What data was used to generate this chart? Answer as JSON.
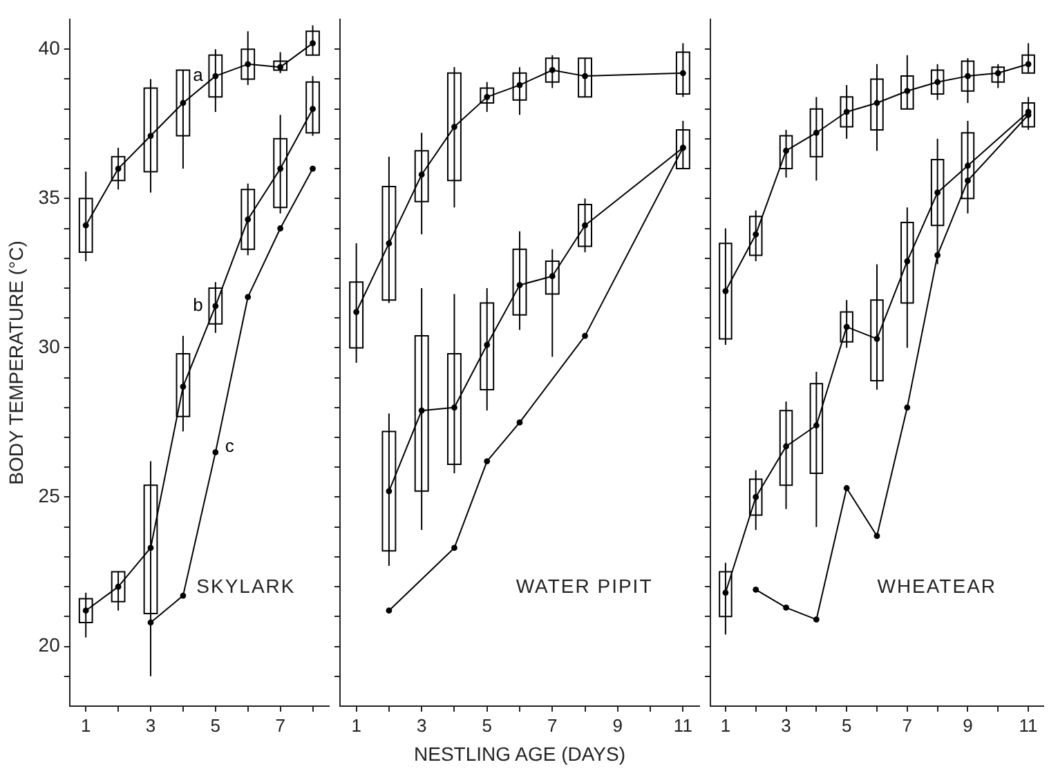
{
  "chart_data": [
    {
      "type": "box",
      "ylabel": "BODY TEMPERATURE (°C)",
      "annotations": [
        "SKYLARK"
      ],
      "categories": [
        "1",
        null,
        "3",
        null,
        "5",
        null,
        "7",
        null
      ],
      "ylim": [
        18,
        41
      ],
      "yticks": [
        {
          "value": 19,
          "label": null
        },
        20,
        {
          "value": 21,
          "label": null
        },
        {
          "value": 22,
          "label": null
        },
        {
          "value": 23,
          "label": null
        },
        {
          "value": 24,
          "label": null
        },
        25,
        {
          "value": 26,
          "label": null
        },
        {
          "value": 27,
          "label": null
        },
        {
          "value": 28,
          "label": null
        },
        {
          "value": 29,
          "label": null
        },
        30,
        {
          "value": 31,
          "label": null
        },
        {
          "value": 32,
          "label": null
        },
        {
          "value": 33,
          "label": null
        },
        {
          "value": 34,
          "label": null
        },
        35,
        {
          "value": 36,
          "label": null
        },
        {
          "value": 37,
          "label": null
        },
        {
          "value": 38,
          "label": null
        },
        {
          "value": 39,
          "label": null
        },
        40
      ],
      "grid": false,
      "marker": "circle",
      "line_style": "solid",
      "series": [
        {
          "name": "a",
          "color": "#000000",
          "boxes": [
            {
              "low": 32.9,
              "q1": 33.2,
              "median": 34.1,
              "q3": 35.0,
              "high": 35.9
            },
            {
              "low": 35.3,
              "q1": 35.6,
              "median": 36.0,
              "q3": 36.4,
              "high": 36.7
            },
            {
              "low": 35.2,
              "q1": 35.9,
              "median": 37.1,
              "q3": 38.7,
              "high": 39.0
            },
            {
              "low": 36.0,
              "q1": 37.1,
              "median": 38.2,
              "q3": 39.3,
              "high": 39.3
            },
            {
              "low": 37.9,
              "q1": 38.4,
              "median": 39.1,
              "q3": 39.8,
              "high": 40.0
            },
            {
              "low": 38.8,
              "q1": 39.0,
              "median": 39.5,
              "q3": 40.0,
              "high": 40.6
            },
            {
              "low": 39.2,
              "q1": 39.3,
              "median": 39.4,
              "q3": 39.6,
              "high": 39.9
            },
            {
              "low": 39.8,
              "q1": 39.8,
              "median": 40.2,
              "q3": 40.6,
              "high": 40.8
            }
          ]
        },
        {
          "type": "line",
          "marker": "none",
          "color": "#000000",
          "values": [
            34.1,
            36.0,
            37.1,
            38.2,
            39.1,
            39.5,
            39.4,
            40.2
          ]
        },
        {
          "name": "b",
          "color": "#000000",
          "boxes": [
            {
              "low": 20.3,
              "q1": 20.8,
              "median": 21.2,
              "q3": 21.6,
              "high": 21.8
            },
            {
              "low": 21.2,
              "q1": 21.5,
              "median": 22.0,
              "q3": 22.5,
              "high": 22.5
            },
            {
              "low": 19.0,
              "q1": 21.1,
              "median": 23.3,
              "q3": 25.4,
              "high": 26.2
            },
            {
              "low": 27.2,
              "q1": 27.7,
              "median": 28.7,
              "q3": 29.8,
              "high": 30.4
            },
            {
              "low": 30.5,
              "q1": 30.8,
              "median": 31.4,
              "q3": 32.0,
              "high": 32.2
            },
            {
              "low": 33.1,
              "q1": 33.3,
              "median": 34.3,
              "q3": 35.3,
              "high": 35.5
            },
            {
              "low": 34.5,
              "q1": 34.7,
              "median": 36.0,
              "q3": 37.0,
              "high": 37.8
            },
            {
              "low": 37.1,
              "q1": 37.2,
              "median": 38.0,
              "q3": 38.9,
              "high": 39.1
            }
          ]
        },
        {
          "type": "line",
          "marker": "none",
          "color": "#000000",
          "values": [
            21.2,
            22.0,
            23.3,
            28.7,
            31.4,
            34.3,
            36.0,
            38.0
          ]
        },
        {
          "name": "c",
          "type": "line",
          "color": "#000000",
          "values": [
            null,
            null,
            20.8,
            21.7,
            26.5,
            31.7,
            34.0,
            36.0
          ]
        }
      ]
    },
    {
      "type": "box",
      "xlabel": "NESTLING AGE (DAYS)",
      "annotations": [
        "WATER PIPIT"
      ],
      "categories": [
        "1",
        null,
        "3",
        null,
        "5",
        null,
        "7",
        null,
        "9",
        null,
        "11"
      ],
      "ylim": [
        18,
        41
      ],
      "yticks": [
        {
          "value": 19,
          "label": null
        },
        20,
        {
          "value": 21,
          "label": null
        },
        {
          "value": 22,
          "label": null
        },
        {
          "value": 23,
          "label": null
        },
        {
          "value": 24,
          "label": null
        },
        25,
        {
          "value": 26,
          "label": null
        },
        {
          "value": 27,
          "label": null
        },
        {
          "value": 28,
          "label": null
        },
        {
          "value": 29,
          "label": null
        },
        30,
        {
          "value": 31,
          "label": null
        },
        {
          "value": 32,
          "label": null
        },
        {
          "value": 33,
          "label": null
        },
        {
          "value": 34,
          "label": null
        },
        35,
        {
          "value": 36,
          "label": null
        },
        {
          "value": 37,
          "label": null
        },
        {
          "value": 38,
          "label": null
        },
        {
          "value": 39,
          "label": null
        },
        40
      ],
      "tick_labels": "x",
      "grid": false,
      "marker": "circle",
      "line_style": "solid",
      "series": [
        {
          "color": "#000000",
          "boxes": [
            {
              "low": 29.5,
              "q1": 30.0,
              "median": 31.2,
              "q3": 32.2,
              "high": 33.5
            },
            {
              "low": 31.5,
              "q1": 31.6,
              "median": 33.5,
              "q3": 35.4,
              "high": 36.4
            },
            {
              "low": 33.8,
              "q1": 34.9,
              "median": 35.8,
              "q3": 36.6,
              "high": 37.2
            },
            {
              "low": 34.7,
              "q1": 35.6,
              "median": 37.4,
              "q3": 39.2,
              "high": 39.4
            },
            {
              "low": 37.9,
              "q1": 38.2,
              "median": 38.4,
              "q3": 38.7,
              "high": 38.9
            },
            {
              "low": 37.8,
              "q1": 38.3,
              "median": 38.8,
              "q3": 39.2,
              "high": 39.4
            },
            {
              "low": 38.7,
              "q1": 38.9,
              "median": 39.3,
              "q3": 39.7,
              "high": 39.8
            },
            {
              "low": 38.4,
              "q1": 38.4,
              "median": 39.1,
              "q3": 39.7,
              "high": 39.7
            },
            null,
            null,
            {
              "low": 38.4,
              "q1": 38.5,
              "median": 39.2,
              "q3": 39.9,
              "high": 40.2
            }
          ]
        },
        {
          "type": "line",
          "marker": "none",
          "color": "#000000",
          "values": [
            31.2,
            33.5,
            35.8,
            37.4,
            38.4,
            38.8,
            39.3,
            39.1,
            null,
            null,
            39.2
          ]
        },
        {
          "color": "#000000",
          "boxes": [
            null,
            {
              "low": 22.7,
              "q1": 23.2,
              "median": 25.2,
              "q3": 27.2,
              "high": 27.8
            },
            {
              "low": 23.9,
              "q1": 25.2,
              "median": 27.9,
              "q3": 30.4,
              "high": 32.0
            },
            {
              "low": 25.8,
              "q1": 26.1,
              "median": 28.0,
              "q3": 29.8,
              "high": 31.8
            },
            {
              "low": 27.9,
              "q1": 28.6,
              "median": 30.1,
              "q3": 31.5,
              "high": 32.0
            },
            {
              "low": 30.6,
              "q1": 31.1,
              "median": 32.1,
              "q3": 33.3,
              "high": 33.9
            },
            {
              "low": 29.7,
              "q1": 31.8,
              "median": 32.4,
              "q3": 32.9,
              "high": 33.3
            },
            {
              "low": 33.2,
              "q1": 33.4,
              "median": 34.1,
              "q3": 34.8,
              "high": 35.0
            },
            null,
            null,
            {
              "low": 36.0,
              "q1": 36.0,
              "median": 36.7,
              "q3": 37.3,
              "high": 37.6
            }
          ]
        },
        {
          "type": "line",
          "marker": "none",
          "color": "#000000",
          "values": [
            null,
            25.2,
            27.9,
            28.0,
            30.1,
            32.1,
            32.4,
            34.1,
            null,
            null,
            36.7
          ]
        },
        {
          "type": "line",
          "color": "#000000",
          "values": [
            null,
            21.2,
            null,
            23.3,
            26.2,
            27.5,
            null,
            30.4,
            null,
            null,
            36.7
          ]
        }
      ]
    },
    {
      "type": "box",
      "annotations": [
        "WHEATEAR"
      ],
      "categories": [
        "1",
        null,
        "3",
        null,
        "5",
        null,
        "7",
        null,
        "9",
        null,
        "11"
      ],
      "ylim": [
        18,
        41
      ],
      "yticks": [
        {
          "value": 19,
          "label": null
        },
        20,
        {
          "value": 21,
          "label": null
        },
        {
          "value": 22,
          "label": null
        },
        {
          "value": 23,
          "label": null
        },
        {
          "value": 24,
          "label": null
        },
        25,
        {
          "value": 26,
          "label": null
        },
        {
          "value": 27,
          "label": null
        },
        {
          "value": 28,
          "label": null
        },
        {
          "value": 29,
          "label": null
        },
        30,
        {
          "value": 31,
          "label": null
        },
        {
          "value": 32,
          "label": null
        },
        {
          "value": 33,
          "label": null
        },
        {
          "value": 34,
          "label": null
        },
        35,
        {
          "value": 36,
          "label": null
        },
        {
          "value": 37,
          "label": null
        },
        {
          "value": 38,
          "label": null
        },
        {
          "value": 39,
          "label": null
        },
        40
      ],
      "tick_labels": "x",
      "grid": false,
      "marker": "circle",
      "line_style": "solid",
      "series": [
        {
          "color": "#000000",
          "boxes": [
            {
              "low": 30.1,
              "q1": 30.3,
              "median": 31.9,
              "q3": 33.5,
              "high": 34.0
            },
            {
              "low": 32.9,
              "q1": 33.1,
              "median": 33.8,
              "q3": 34.4,
              "high": 34.6
            },
            {
              "low": 35.7,
              "q1": 36.0,
              "median": 36.6,
              "q3": 37.1,
              "high": 37.3
            },
            {
              "low": 35.6,
              "q1": 36.4,
              "median": 37.2,
              "q3": 38.0,
              "high": 38.4
            },
            {
              "low": 37.0,
              "q1": 37.4,
              "median": 37.9,
              "q3": 38.4,
              "high": 38.8
            },
            {
              "low": 36.6,
              "q1": 37.3,
              "median": 38.2,
              "q3": 39.0,
              "high": 39.5
            },
            {
              "low": 38.0,
              "q1": 38.0,
              "median": 38.6,
              "q3": 39.1,
              "high": 39.8
            },
            {
              "low": 38.3,
              "q1": 38.5,
              "median": 38.9,
              "q3": 39.3,
              "high": 39.5
            },
            {
              "low": 38.2,
              "q1": 38.6,
              "median": 39.1,
              "q3": 39.6,
              "high": 39.7
            },
            {
              "low": 38.7,
              "q1": 38.9,
              "median": 39.2,
              "q3": 39.4,
              "high": 39.5
            },
            {
              "low": 39.2,
              "q1": 39.2,
              "median": 39.5,
              "q3": 39.8,
              "high": 40.2
            }
          ]
        },
        {
          "type": "line",
          "marker": "none",
          "color": "#000000",
          "values": [
            31.9,
            33.8,
            36.6,
            37.2,
            37.9,
            38.2,
            38.6,
            38.9,
            39.1,
            39.2,
            39.5
          ]
        },
        {
          "color": "#000000",
          "boxes": [
            {
              "low": 20.4,
              "q1": 21.0,
              "median": 21.8,
              "q3": 22.5,
              "high": 22.8
            },
            {
              "low": 23.9,
              "q1": 24.4,
              "median": 25.0,
              "q3": 25.6,
              "high": 25.9
            },
            {
              "low": 24.6,
              "q1": 25.4,
              "median": 26.7,
              "q3": 27.9,
              "high": 28.2
            },
            {
              "low": 24.0,
              "q1": 25.8,
              "median": 27.4,
              "q3": 28.8,
              "high": 29.2
            },
            {
              "low": 30.0,
              "q1": 30.2,
              "median": 30.7,
              "q3": 31.2,
              "high": 31.6
            },
            {
              "low": 28.6,
              "q1": 28.9,
              "median": 30.3,
              "q3": 31.6,
              "high": 32.8
            },
            {
              "low": 30.0,
              "q1": 31.5,
              "median": 32.9,
              "q3": 34.2,
              "high": 34.7
            },
            {
              "low": 32.8,
              "q1": 34.1,
              "median": 35.2,
              "q3": 36.3,
              "high": 37.0
            },
            {
              "low": 34.5,
              "q1": 35.0,
              "median": 36.1,
              "q3": 37.2,
              "high": 37.6
            },
            null,
            {
              "low": 37.3,
              "q1": 37.4,
              "median": 37.9,
              "q3": 38.2,
              "high": 38.4
            }
          ]
        },
        {
          "type": "line",
          "marker": "none",
          "color": "#000000",
          "values": [
            21.8,
            25.0,
            26.7,
            27.4,
            30.7,
            30.3,
            32.9,
            35.2,
            36.1,
            null,
            37.9
          ]
        },
        {
          "type": "line",
          "color": "#000000",
          "values": [
            null,
            21.9,
            21.3,
            20.9,
            25.3,
            23.7,
            28.0,
            33.1,
            35.6,
            null,
            37.8
          ]
        }
      ]
    }
  ]
}
